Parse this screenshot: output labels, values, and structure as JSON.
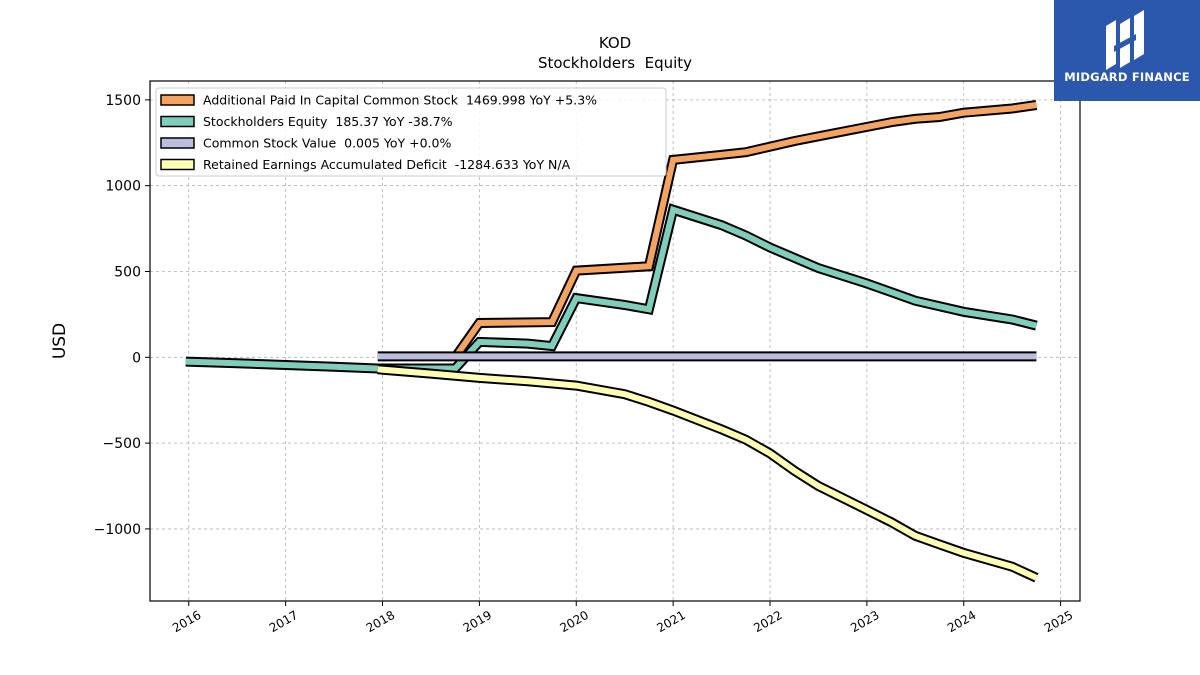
{
  "chart_data": {
    "type": "line",
    "title": "KOD",
    "subtitle": "Stockholders  Equity",
    "ylabel": "USD",
    "xlabel": "",
    "xlim": [
      2015.6,
      2025.2
    ],
    "ylim": [
      -1420,
      1610
    ],
    "x_ticks": [
      2016,
      2017,
      2018,
      2019,
      2020,
      2021,
      2022,
      2023,
      2024,
      2025
    ],
    "y_ticks": [
      -1000,
      -500,
      0,
      500,
      1000,
      1500
    ],
    "y_tick_labels": [
      "−1000",
      "−500",
      "0",
      "500",
      "1000",
      "1500"
    ],
    "grid": true,
    "legend_position": "top-left",
    "series": [
      {
        "name": "Additional Paid In Capital Common Stock  1469.998 YoY +5.3%",
        "color": "#f4a460",
        "points": [
          [
            2018.75,
            0
          ],
          [
            2019.0,
            200
          ],
          [
            2019.75,
            205
          ],
          [
            2020.0,
            505
          ],
          [
            2020.75,
            530
          ],
          [
            2021.0,
            1150
          ],
          [
            2021.5,
            1180
          ],
          [
            2021.75,
            1195
          ],
          [
            2022.25,
            1260
          ],
          [
            2022.75,
            1315
          ],
          [
            2023.25,
            1370
          ],
          [
            2023.5,
            1390
          ],
          [
            2023.75,
            1400
          ],
          [
            2024.0,
            1425
          ],
          [
            2024.5,
            1450
          ],
          [
            2024.75,
            1470
          ]
        ]
      },
      {
        "name": "Stockholders Equity  185.37 YoY -38.7%",
        "color": "#7fcdbb",
        "points": [
          [
            2015.97,
            -25
          ],
          [
            2016.5,
            -35
          ],
          [
            2017.0,
            -45
          ],
          [
            2017.5,
            -55
          ],
          [
            2017.95,
            -65
          ],
          [
            2018.5,
            -65
          ],
          [
            2018.75,
            -65
          ],
          [
            2019.0,
            90
          ],
          [
            2019.5,
            80
          ],
          [
            2019.75,
            65
          ],
          [
            2020.0,
            345
          ],
          [
            2020.5,
            305
          ],
          [
            2020.75,
            280
          ],
          [
            2021.0,
            860
          ],
          [
            2021.5,
            770
          ],
          [
            2021.75,
            710
          ],
          [
            2022.0,
            640
          ],
          [
            2022.5,
            520
          ],
          [
            2023.0,
            430
          ],
          [
            2023.25,
            380
          ],
          [
            2023.5,
            330
          ],
          [
            2024.0,
            265
          ],
          [
            2024.5,
            220
          ],
          [
            2024.75,
            185
          ]
        ]
      },
      {
        "name": "Common Stock Value  0.005 YoY +0.0%",
        "color": "#bcbddc",
        "points": [
          [
            2017.95,
            5
          ],
          [
            2024.75,
            5
          ]
        ]
      },
      {
        "name": "Retained Earnings Accumulated Deficit  -1284.633 YoY N/A",
        "color": "#ffffb3",
        "points": [
          [
            2017.95,
            -70
          ],
          [
            2018.5,
            -95
          ],
          [
            2019.0,
            -120
          ],
          [
            2019.5,
            -140
          ],
          [
            2020.0,
            -165
          ],
          [
            2020.5,
            -215
          ],
          [
            2020.75,
            -260
          ],
          [
            2021.0,
            -310
          ],
          [
            2021.5,
            -420
          ],
          [
            2021.75,
            -480
          ],
          [
            2022.0,
            -560
          ],
          [
            2022.25,
            -660
          ],
          [
            2022.5,
            -750
          ],
          [
            2023.0,
            -890
          ],
          [
            2023.25,
            -960
          ],
          [
            2023.5,
            -1040
          ],
          [
            2023.75,
            -1090
          ],
          [
            2024.0,
            -1140
          ],
          [
            2024.5,
            -1220
          ],
          [
            2024.75,
            -1285
          ]
        ]
      }
    ]
  },
  "logo": {
    "text": "MIDGARD FINANCE",
    "background": "#2b58ad"
  }
}
